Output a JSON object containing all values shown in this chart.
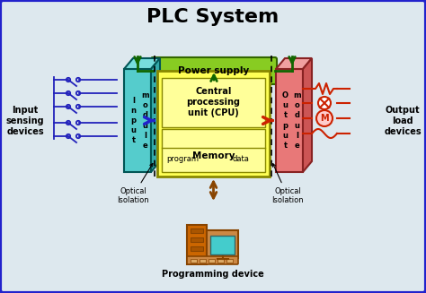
{
  "title": "PLC System",
  "title_fontsize": 16,
  "bg_color": "#dde8ee",
  "border_color": "#2222cc",
  "input_module_color": "#55cccc",
  "output_module_color": "#e87878",
  "cpu_box_color": "#ffff55",
  "power_supply_color": "#88cc22",
  "green_line_color": "#116600",
  "blue_arrow_color": "#2222cc",
  "red_arrow_color": "#cc2200",
  "brown_arrow_color": "#884400",
  "input_sensing_text": "Input\nsensing\ndevices",
  "output_load_text": "Output\nload\ndevices",
  "optical_isolation_left": "Optical\nIsolation",
  "optical_isolation_right": "Optical\nIsolation",
  "power_supply_label": "Power supply",
  "cpu_label": "Central\nprocessing\nunit (CPU)",
  "memory_label": "Memory",
  "program_label": "program",
  "data_label": "data",
  "programming_device_label": "Programming device"
}
